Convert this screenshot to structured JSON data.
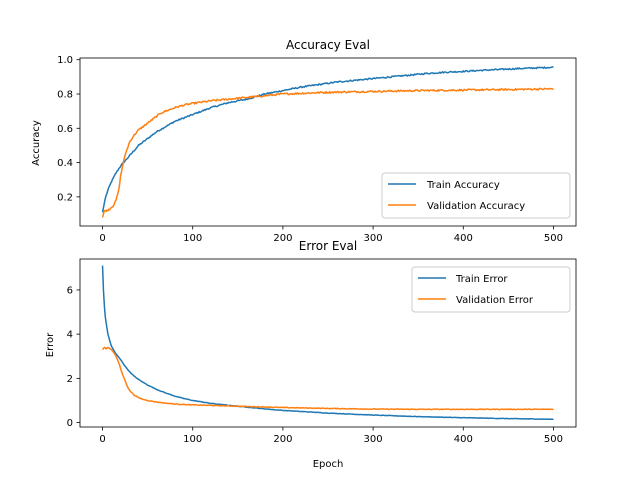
{
  "chart_data": [
    {
      "type": "line",
      "title": "Accuracy Eval",
      "xlabel": "",
      "ylabel": "Accuracy",
      "xlim": [
        -25,
        525
      ],
      "ylim": [
        0.03,
        1.01
      ],
      "xticks": [
        0,
        100,
        200,
        300,
        400,
        500
      ],
      "yticks": [
        0.2,
        0.4,
        0.6,
        0.8,
        1.0
      ],
      "ytick_labels": [
        "0.2",
        "0.4",
        "0.6",
        "0.8",
        "1.0"
      ],
      "legend_position": "lower-right",
      "grid": false,
      "series": [
        {
          "name": "Train Accuracy",
          "color": "#1f77b4",
          "x": [
            0,
            3,
            6,
            10,
            15,
            20,
            25,
            30,
            35,
            40,
            45,
            50,
            60,
            70,
            80,
            90,
            100,
            120,
            140,
            160,
            180,
            200,
            220,
            240,
            260,
            280,
            300,
            320,
            340,
            360,
            380,
            400,
            420,
            440,
            460,
            480,
            500
          ],
          "y": [
            0.11,
            0.19,
            0.24,
            0.29,
            0.34,
            0.38,
            0.41,
            0.44,
            0.47,
            0.5,
            0.52,
            0.54,
            0.58,
            0.61,
            0.64,
            0.66,
            0.68,
            0.72,
            0.75,
            0.77,
            0.8,
            0.82,
            0.84,
            0.855,
            0.87,
            0.88,
            0.89,
            0.9,
            0.91,
            0.92,
            0.927,
            0.932,
            0.938,
            0.943,
            0.948,
            0.952,
            0.956
          ]
        },
        {
          "name": "Validation Accuracy",
          "color": "#ff7f0e",
          "x": [
            0,
            2,
            5,
            8,
            12,
            15,
            18,
            20,
            23,
            26,
            30,
            35,
            40,
            45,
            50,
            55,
            60,
            65,
            70,
            80,
            90,
            100,
            120,
            140,
            160,
            180,
            200,
            250,
            300,
            350,
            400,
            450,
            500
          ],
          "y": [
            0.08,
            0.12,
            0.12,
            0.13,
            0.15,
            0.18,
            0.24,
            0.32,
            0.4,
            0.46,
            0.52,
            0.56,
            0.59,
            0.61,
            0.63,
            0.65,
            0.67,
            0.69,
            0.7,
            0.72,
            0.735,
            0.745,
            0.76,
            0.77,
            0.78,
            0.79,
            0.8,
            0.81,
            0.815,
            0.82,
            0.823,
            0.826,
            0.83
          ]
        }
      ]
    },
    {
      "type": "line",
      "title": "Error Eval",
      "xlabel": "Epoch",
      "ylabel": "Error",
      "xlim": [
        -25,
        525
      ],
      "ylim": [
        -0.2,
        7.4
      ],
      "xticks": [
        0,
        100,
        200,
        300,
        400,
        500
      ],
      "yticks": [
        0,
        2,
        4,
        6
      ],
      "ytick_labels": [
        "0",
        "2",
        "4",
        "6"
      ],
      "legend_position": "upper-right",
      "grid": false,
      "series": [
        {
          "name": "Train Error",
          "color": "#1f77b4",
          "x": [
            0,
            1,
            2,
            3,
            4,
            6,
            8,
            10,
            12,
            15,
            18,
            20,
            25,
            30,
            35,
            40,
            45,
            50,
            60,
            70,
            80,
            90,
            100,
            120,
            140,
            160,
            180,
            200,
            250,
            300,
            350,
            400,
            450,
            500
          ],
          "y": [
            7.1,
            6.0,
            5.3,
            4.8,
            4.5,
            4.0,
            3.7,
            3.45,
            3.3,
            3.1,
            2.95,
            2.85,
            2.55,
            2.3,
            2.1,
            1.95,
            1.82,
            1.7,
            1.5,
            1.34,
            1.2,
            1.09,
            1.0,
            0.87,
            0.78,
            0.7,
            0.62,
            0.55,
            0.43,
            0.34,
            0.27,
            0.22,
            0.18,
            0.15
          ]
        },
        {
          "name": "Validation Error",
          "color": "#ff7f0e",
          "x": [
            0,
            2,
            4,
            6,
            8,
            10,
            12,
            15,
            18,
            20,
            22,
            25,
            28,
            30,
            35,
            40,
            45,
            50,
            60,
            70,
            80,
            100,
            150,
            200,
            250,
            300,
            350,
            400,
            450,
            500
          ],
          "y": [
            3.3,
            3.4,
            3.35,
            3.4,
            3.35,
            3.3,
            3.2,
            3.0,
            2.7,
            2.45,
            2.2,
            1.9,
            1.6,
            1.45,
            1.25,
            1.12,
            1.05,
            1.0,
            0.93,
            0.88,
            0.84,
            0.8,
            0.74,
            0.68,
            0.64,
            0.61,
            0.6,
            0.6,
            0.6,
            0.6
          ]
        }
      ]
    }
  ]
}
